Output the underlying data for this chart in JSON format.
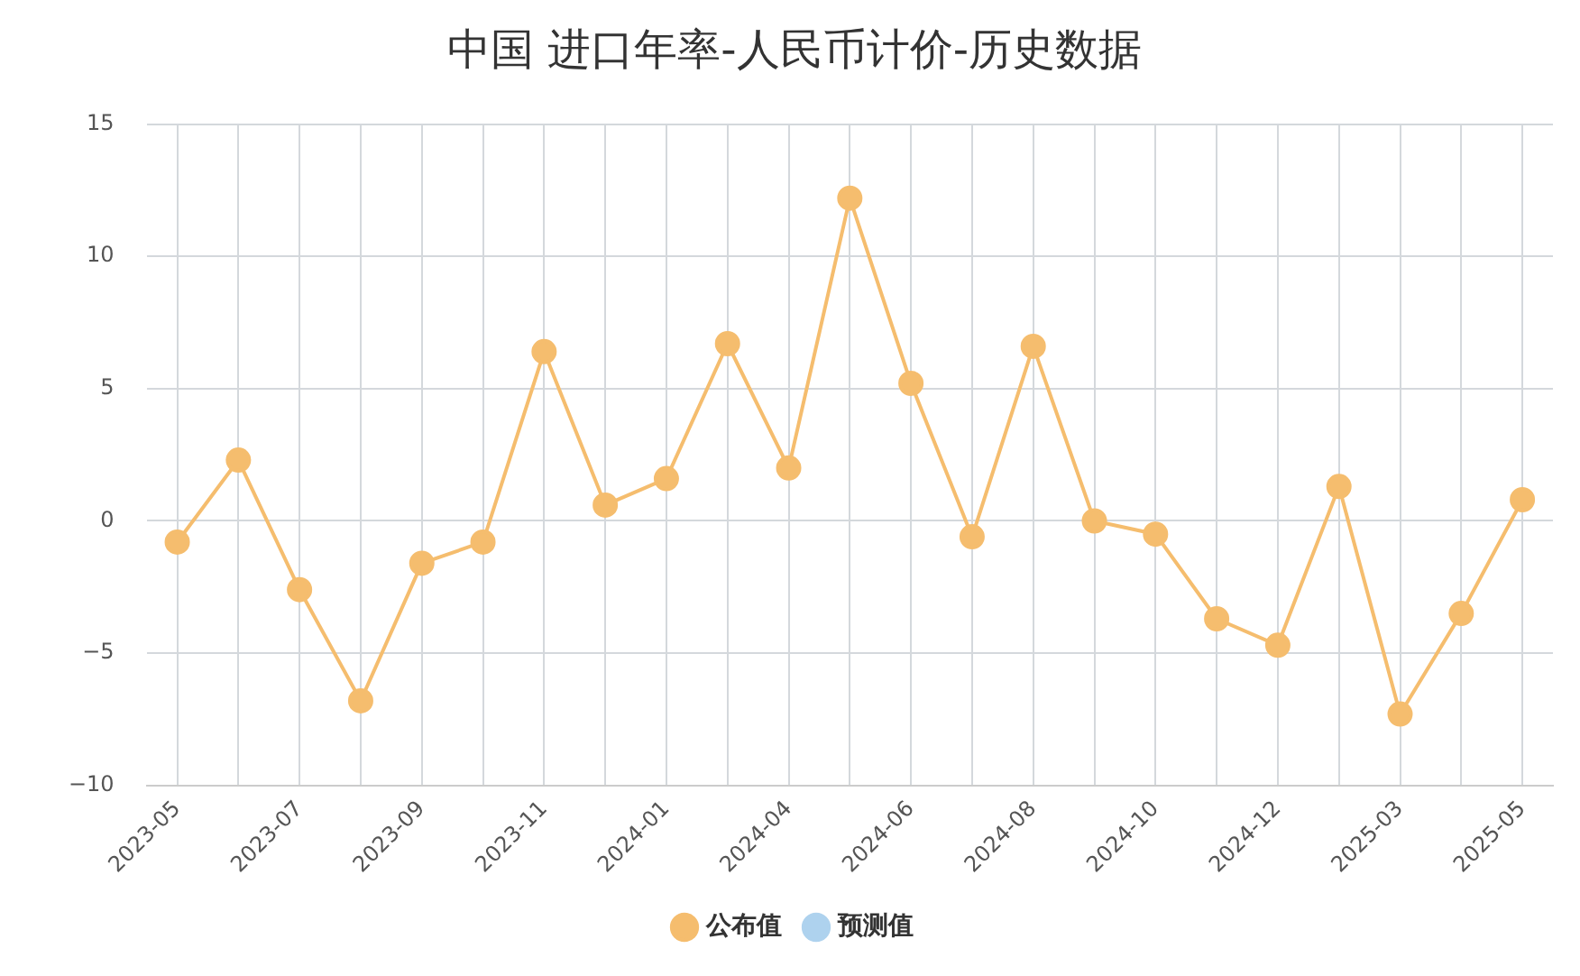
{
  "chart_data": {
    "type": "line",
    "title": "中国 进口年率-人民币计价-历史数据",
    "categories": [
      "2023-05",
      null,
      "2023-07",
      null,
      "2023-09",
      null,
      "2023-11",
      null,
      "2024-01",
      null,
      "2024-04",
      null,
      "2024-06",
      null,
      "2024-08",
      null,
      "2024-10",
      null,
      "2024-12",
      null,
      "2025-03",
      null,
      "2025-05"
    ],
    "series": [
      {
        "name": "公布值",
        "color": "#f5bd6e",
        "values": [
          -0.8,
          2.3,
          -2.6,
          -6.8,
          -1.6,
          -0.8,
          6.4,
          0.6,
          1.6,
          6.7,
          2.0,
          12.2,
          5.2,
          -0.6,
          6.6,
          0.0,
          -0.5,
          -3.7,
          -4.7,
          1.3,
          -7.3,
          -3.5,
          0.8
        ]
      },
      {
        "name": "预测值",
        "color": "#aed2ee",
        "values": [
          null,
          null,
          null,
          null,
          null,
          null,
          null,
          null,
          null,
          null,
          null,
          null,
          null,
          null,
          null,
          null,
          null,
          null,
          null,
          null,
          null,
          null,
          null
        ]
      }
    ],
    "ylim": [
      -10,
      15
    ],
    "yticks": [
      -10,
      -5,
      0,
      5,
      10,
      15
    ],
    "grid": true,
    "legend": "bottom",
    "marker": "circle",
    "line_style": "solid"
  }
}
